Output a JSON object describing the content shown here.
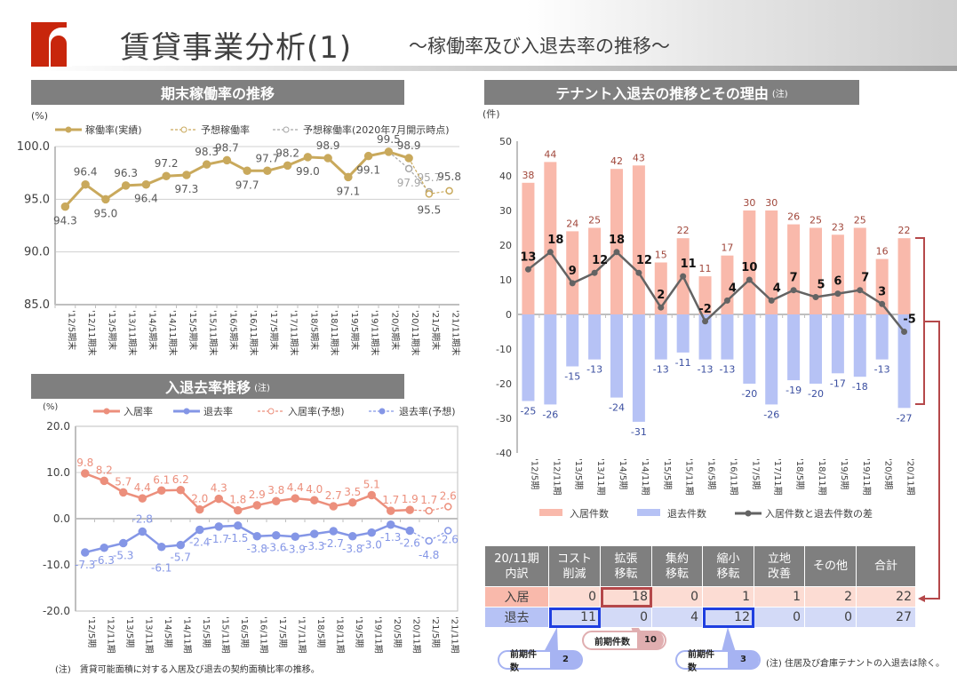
{
  "header": {
    "title": "賃貸事業分析(1)",
    "subtitle": "～稼働率及び入退去率の推移～"
  },
  "sections": {
    "occupancy": "期末稼働率の推移",
    "rates": "入退去率推移",
    "rates_note": "(注)",
    "tenants": "テナント入退去の推移とその理由",
    "tenants_note": "(注)"
  },
  "colors": {
    "occupancy": "#c9a95c",
    "forecast_july": "#a6a6a6",
    "move_in": "#ec8f7c",
    "move_out": "#8496e6",
    "bar_in": "#f9b9ab",
    "bar_out": "#b6c2f5",
    "diff": "#636363",
    "bracket": "#b5484a",
    "header_bar": "#7f7f7f"
  },
  "chart_data": [
    {
      "type": "line",
      "unit": "(%)",
      "ylim": [
        85,
        100
      ],
      "yticks": [
        "100.0",
        "95.0",
        "90.0",
        "85.0"
      ],
      "grid": true,
      "legend": "top",
      "categories": [
        "'12/5期末",
        "'12/11期末",
        "'13/5期末",
        "'13/11期末",
        "'14/5期末",
        "'14/11期末",
        "'15/5期末",
        "'15/11期末",
        "'16/5期末",
        "'16/11期末",
        "'17/5期末",
        "'17/11期末",
        "'18/5期末",
        "'18/11期末",
        "'19/5期末",
        "'19/11期末",
        "'20/5期末",
        "'20/11期末",
        "'21/5期末",
        "'21/11期末"
      ],
      "series": [
        {
          "name": "稼働率(実績)",
          "values": [
            94.3,
            96.4,
            95.0,
            96.3,
            96.4,
            97.2,
            97.3,
            98.3,
            98.7,
            97.7,
            97.7,
            98.2,
            99.0,
            98.9,
            97.1,
            99.1,
            99.5,
            98.9,
            null,
            null
          ]
        },
        {
          "name": "予想稼働率",
          "values": [
            null,
            null,
            null,
            null,
            null,
            null,
            null,
            null,
            null,
            null,
            null,
            null,
            null,
            null,
            null,
            null,
            null,
            98.9,
            95.5,
            95.8
          ]
        },
        {
          "name": "予想稼働率(2020年7月開示時点)",
          "values": [
            null,
            null,
            null,
            null,
            null,
            null,
            null,
            null,
            null,
            null,
            null,
            null,
            null,
            null,
            null,
            null,
            99.5,
            97.9,
            95.7,
            null
          ]
        }
      ]
    },
    {
      "type": "line",
      "unit": "(%)",
      "ylim": [
        -20,
        20
      ],
      "yticks": [
        "20.0",
        "10.0",
        "0.0",
        "-10.0",
        "-20.0"
      ],
      "grid": true,
      "legend": "top",
      "categories": [
        "'12/5期",
        "'12/11期",
        "'13/5期",
        "'13/11期",
        "'14/5期",
        "'14/11期",
        "'15/5期",
        "'15/11期",
        "'16/5期",
        "'16/11期",
        "'17/5期",
        "'17/11期",
        "'18/5期",
        "'18/11期",
        "'19/5期",
        "'19/11期",
        "'20/5期",
        "'20/11期",
        "'21/5期",
        "'21/11期"
      ],
      "series": [
        {
          "name": "入居率",
          "values": [
            9.8,
            8.2,
            5.7,
            4.4,
            6.1,
            6.2,
            2.0,
            4.3,
            1.8,
            2.9,
            3.8,
            4.4,
            4.0,
            2.7,
            3.5,
            5.1,
            1.7,
            1.9,
            null,
            null
          ]
        },
        {
          "name": "退去率",
          "values": [
            -7.3,
            -6.3,
            -5.3,
            -2.8,
            -6.1,
            -5.7,
            -2.4,
            -1.7,
            -1.5,
            -3.8,
            -3.6,
            -3.9,
            -3.3,
            -2.7,
            -3.8,
            -3.0,
            -1.3,
            -2.6,
            null,
            null
          ]
        },
        {
          "name": "入居率(予想)",
          "values": [
            null,
            null,
            null,
            null,
            null,
            null,
            null,
            null,
            null,
            null,
            null,
            null,
            null,
            null,
            null,
            null,
            null,
            1.9,
            1.7,
            2.6
          ]
        },
        {
          "name": "退去率(予想)",
          "values": [
            null,
            null,
            null,
            null,
            null,
            null,
            null,
            null,
            null,
            null,
            null,
            null,
            null,
            null,
            null,
            null,
            null,
            -2.6,
            -4.8,
            -2.6
          ]
        }
      ],
      "footnote": "(注)　賃貸可能面積に対する入居及び退去の契約面積比率の推移。"
    },
    {
      "type": "bar",
      "unit": "(件)",
      "ylim": [
        -40,
        50
      ],
      "yticks": [
        "50",
        "40",
        "30",
        "20",
        "10",
        "0",
        "-10",
        "-20",
        "-30",
        "-40"
      ],
      "legend": "bottom",
      "categories": [
        "'12/5期",
        "'12/11期",
        "'13/5期",
        "'13/11期",
        "'14/5期",
        "'14/11期",
        "'15/5期",
        "'15/11期",
        "'16/5期",
        "'16/11期",
        "'17/5期",
        "'17/11期",
        "'18/5期",
        "'18/11期",
        "'19/5期",
        "'19/11期",
        "'20/5期",
        "'20/11期"
      ],
      "series": [
        {
          "name": "入居件数",
          "values": [
            38,
            44,
            24,
            25,
            42,
            43,
            15,
            22,
            11,
            17,
            30,
            30,
            26,
            25,
            23,
            25,
            16,
            22
          ]
        },
        {
          "name": "退去件数",
          "values": [
            -25,
            -26,
            -15,
            -13,
            -24,
            -31,
            -13,
            -11,
            -13,
            -13,
            -20,
            -26,
            -19,
            -20,
            -17,
            -18,
            -13,
            -27
          ]
        },
        {
          "name": "入居件数と退去件数の差",
          "type": "line",
          "values": [
            13,
            18,
            9,
            12,
            18,
            12,
            2,
            11,
            -2,
            4,
            10,
            4,
            7,
            5,
            6,
            7,
            3,
            -5
          ]
        }
      ]
    }
  ],
  "table": {
    "headers": [
      "20/11期\n内訳",
      "コスト\n削減",
      "拡張\n移転",
      "集約\n移転",
      "縮小\n移転",
      "立地\n改善",
      "その他",
      "合計"
    ],
    "rows": [
      {
        "label": "入居",
        "values": [
          "0",
          "18",
          "0",
          "1",
          "1",
          "2",
          "22"
        ]
      },
      {
        "label": "退去",
        "values": [
          "11",
          "0",
          "4",
          "12",
          "0",
          "0",
          "27"
        ]
      }
    ]
  },
  "callouts": [
    {
      "label": "前期件数",
      "value": "10"
    },
    {
      "label": "前期件数",
      "value": "2"
    },
    {
      "label": "前期件数",
      "value": "3"
    }
  ],
  "footnote_tenants": "(注) 住居及び倉庫テナントの入退去は除く。"
}
